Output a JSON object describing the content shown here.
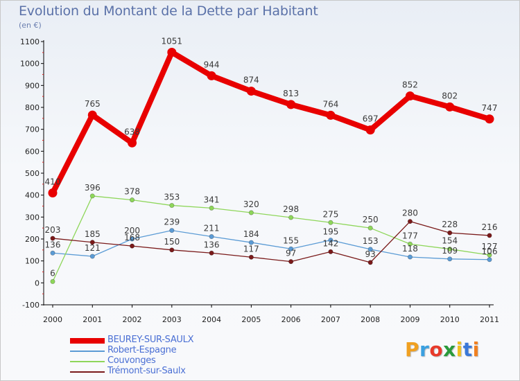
{
  "title": "Evolution du Montant de la Dette par Habitant",
  "subtitle": "(en €)",
  "logo": "Proxiti",
  "chart_data": {
    "type": "line",
    "x": [
      "2000",
      "2001",
      "2002",
      "2003",
      "2004",
      "2005",
      "2006",
      "2007",
      "2008",
      "2009",
      "2010",
      "2011"
    ],
    "ylim": [
      -100,
      1100
    ],
    "yticks": [
      -100,
      0,
      100,
      200,
      300,
      400,
      500,
      600,
      700,
      800,
      900,
      1000,
      1100
    ],
    "grid": false,
    "legend_position": "bottom-left",
    "series": [
      {
        "name": "BEUREY-SUR-SAULX",
        "color": "#e80000",
        "values": [
          410,
          765,
          638,
          1051,
          944,
          874,
          813,
          764,
          697,
          852,
          802,
          747
        ]
      },
      {
        "name": "Robert-Espagne",
        "color": "#5b9bd5",
        "values": [
          136,
          121,
          200,
          239,
          211,
          184,
          155,
          195,
          153,
          118,
          109,
          106
        ]
      },
      {
        "name": "Couvonges",
        "color": "#8ed65a",
        "values": [
          6,
          396,
          378,
          353,
          341,
          320,
          298,
          275,
          250,
          177,
          154,
          127
        ]
      },
      {
        "name": "Trémont-sur-Saulx",
        "color": "#7a1a1a",
        "values": [
          203,
          185,
          168,
          150,
          136,
          117,
          97,
          142,
          93,
          280,
          228,
          216
        ]
      }
    ]
  }
}
